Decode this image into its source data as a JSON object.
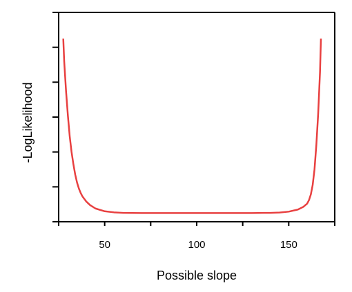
{
  "chart_data": {
    "type": "line",
    "title": "",
    "xlabel": "Possible slope",
    "ylabel": "-LogLikelihood",
    "xlim": [
      25,
      175
    ],
    "ylim": [
      0,
      6
    ],
    "x_ticks": [
      25,
      50,
      75,
      100,
      125,
      150,
      175
    ],
    "x_tick_labels": [
      "",
      "50",
      "",
      "100",
      "",
      "150",
      ""
    ],
    "y_ticks": [
      0,
      1,
      2,
      3,
      4,
      5,
      6
    ],
    "y_tick_labels": [
      "",
      "",
      "",
      "",
      "",
      "",
      ""
    ],
    "grid": false,
    "legend": "none",
    "series": [
      {
        "color": "#e84040",
        "x": [
          27.5,
          28,
          29,
          30,
          31,
          32,
          33,
          34,
          35,
          36,
          37,
          38,
          40,
          42,
          45,
          50,
          55,
          60,
          70,
          80,
          90,
          100,
          110,
          120,
          130,
          140,
          145,
          150,
          155,
          158,
          160,
          161,
          162,
          163,
          164,
          165,
          166,
          167,
          167.5
        ],
        "y": [
          5.25,
          4.6,
          3.75,
          3.05,
          2.45,
          2.0,
          1.65,
          1.35,
          1.12,
          0.95,
          0.82,
          0.72,
          0.58,
          0.48,
          0.38,
          0.3,
          0.27,
          0.255,
          0.25,
          0.25,
          0.25,
          0.25,
          0.25,
          0.25,
          0.25,
          0.255,
          0.265,
          0.29,
          0.35,
          0.43,
          0.52,
          0.62,
          0.78,
          1.05,
          1.5,
          2.2,
          3.1,
          4.3,
          5.25
        ]
      }
    ]
  }
}
